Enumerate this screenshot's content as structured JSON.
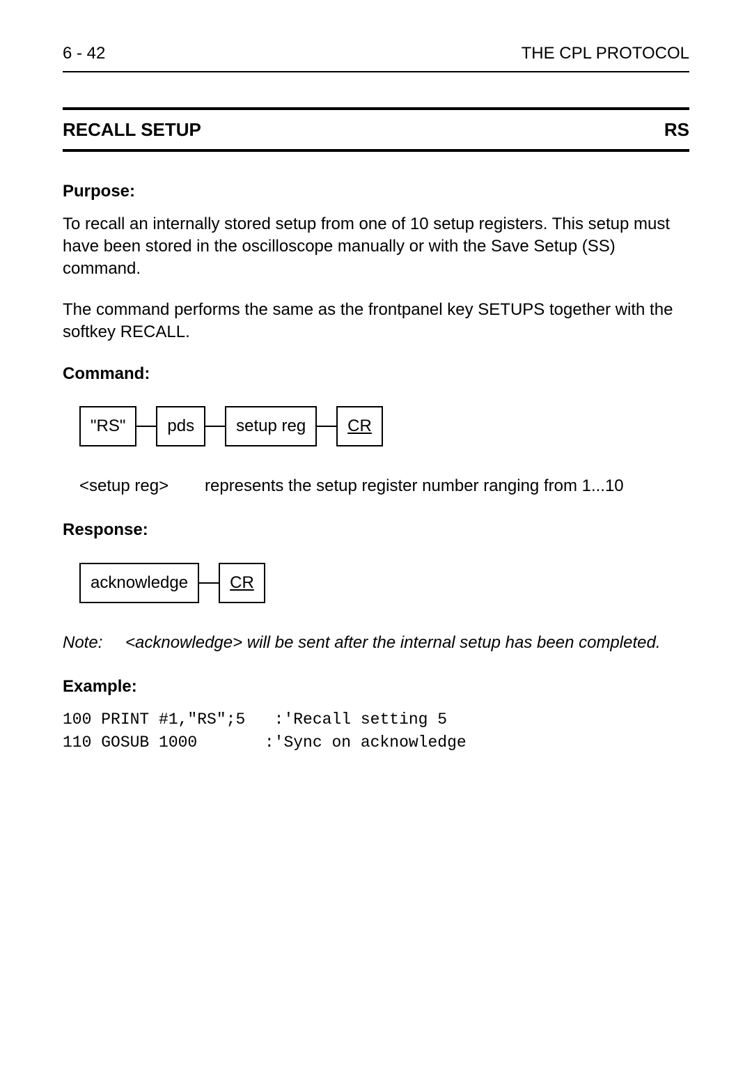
{
  "header": {
    "left": "6 - 42",
    "right": "THE CPL PROTOCOL"
  },
  "title": {
    "name": "RECALL SETUP",
    "code": "RS"
  },
  "purpose": {
    "label": "Purpose:",
    "p1": "To recall an internally stored setup from one of 10 setup registers. This setup must have been stored in the oscilloscope manually or with the Save Setup (SS) command.",
    "p2": "The command performs the same as the frontpanel key SETUPS together with the softkey RECALL."
  },
  "command": {
    "label": "Command:",
    "boxes": [
      "\"RS\"",
      "pds",
      "setup reg",
      "CR"
    ],
    "param_term": "<setup reg>",
    "param_desc": "represents the setup register number ranging from 1...10"
  },
  "response": {
    "label": "Response:",
    "boxes": [
      "acknowledge",
      "CR"
    ]
  },
  "note": {
    "label": "Note:",
    "text": "<acknowledge> will be sent after the internal setup has been completed."
  },
  "example": {
    "label": "Example:",
    "code": "100 PRINT #1,\"RS\";5   :'Recall setting 5\n110 GOSUB 1000       :'Sync on acknowledge"
  }
}
